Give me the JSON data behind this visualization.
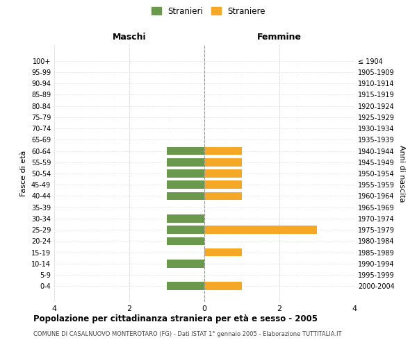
{
  "age_groups": [
    "100+",
    "95-99",
    "90-94",
    "85-89",
    "80-84",
    "75-79",
    "70-74",
    "65-69",
    "60-64",
    "55-59",
    "50-54",
    "45-49",
    "40-44",
    "35-39",
    "30-34",
    "25-29",
    "20-24",
    "15-19",
    "10-14",
    "5-9",
    "0-4"
  ],
  "birth_years": [
    "≤ 1904",
    "1905-1909",
    "1910-1914",
    "1915-1919",
    "1920-1924",
    "1925-1929",
    "1930-1934",
    "1935-1939",
    "1940-1944",
    "1945-1949",
    "1950-1954",
    "1955-1959",
    "1960-1964",
    "1965-1969",
    "1970-1974",
    "1975-1979",
    "1980-1984",
    "1985-1989",
    "1990-1994",
    "1995-1999",
    "2000-2004"
  ],
  "males": [
    0,
    0,
    0,
    0,
    0,
    0,
    0,
    0,
    1,
    1,
    1,
    1,
    1,
    0,
    1,
    1,
    1,
    0,
    1,
    0,
    1
  ],
  "females": [
    0,
    0,
    0,
    0,
    0,
    0,
    0,
    0,
    1,
    1,
    1,
    1,
    1,
    0,
    0,
    3,
    0,
    1,
    0,
    0,
    1
  ],
  "male_color": "#6a994e",
  "female_color": "#f4a825",
  "background_color": "#ffffff",
  "grid_color": "#cccccc",
  "title": "Popolazione per cittadinanza straniera per età e sesso - 2005",
  "subtitle": "COMUNE DI CASALNUOVO MONTEROTARO (FG) - Dati ISTAT 1° gennaio 2005 - Elaborazione TUTTITALIA.IT",
  "xlabel_left": "Maschi",
  "xlabel_right": "Femmine",
  "ylabel_left": "Fasce di età",
  "ylabel_right": "Anni di nascita",
  "legend_male": "Stranieri",
  "legend_female": "Straniere",
  "xlim": 4
}
